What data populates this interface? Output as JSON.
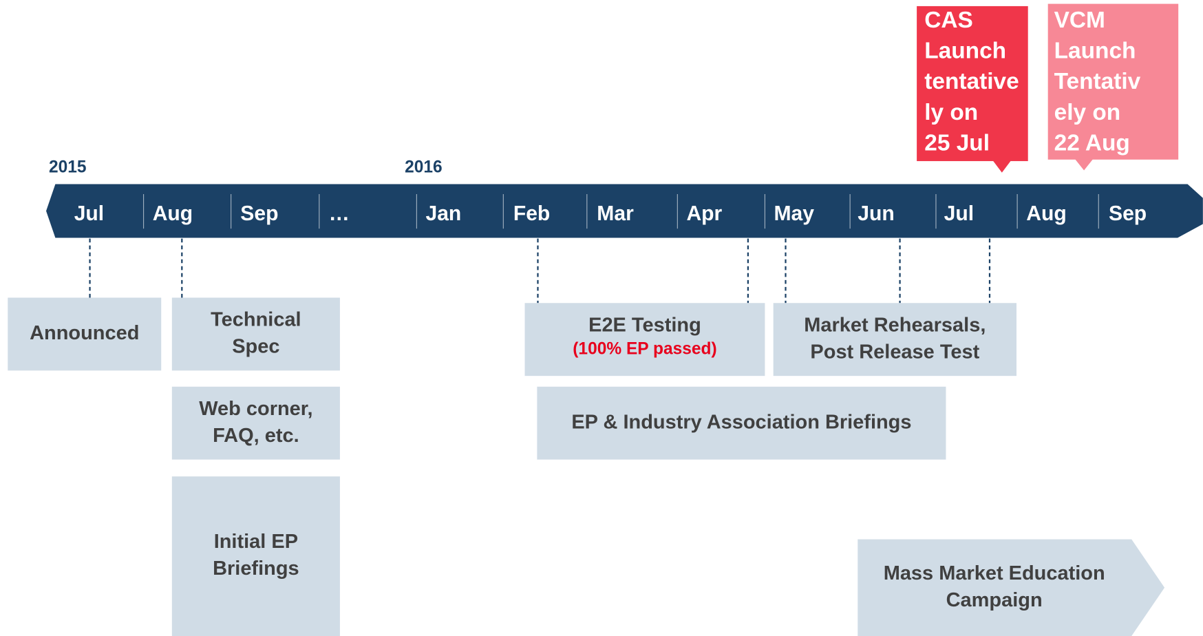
{
  "timeline": {
    "years": [
      "2015",
      "2016"
    ],
    "months": [
      "Jul",
      "Aug",
      "Sep",
      "…",
      "Jan",
      "Feb",
      "Mar",
      "Apr",
      "May",
      "Jun",
      "Jul",
      "Aug",
      "Sep"
    ]
  },
  "callouts": [
    {
      "lines": [
        "CAS",
        "Launch",
        "tentative",
        "ly on",
        "25 Jul"
      ]
    },
    {
      "lines": [
        "VCM",
        "Launch",
        "Tentativ",
        "ely on",
        "22 Aug"
      ]
    }
  ],
  "boxes": [
    {
      "lines": [
        "Announced"
      ]
    },
    {
      "lines": [
        "Technical",
        "Spec"
      ]
    },
    {
      "lines": [
        "Web corner,",
        "FAQ, etc."
      ]
    },
    {
      "lines": [
        "Initial EP",
        "Briefings"
      ]
    },
    {
      "lines": [
        "E2E Testing"
      ],
      "note": "(100% EP passed)"
    },
    {
      "lines": [
        "Market Rehearsals,",
        "Post Release Test"
      ]
    },
    {
      "lines": [
        "EP & Industry Association Briefings"
      ]
    },
    {
      "lines": [
        "Mass Market Education",
        "Campaign"
      ]
    }
  ]
}
